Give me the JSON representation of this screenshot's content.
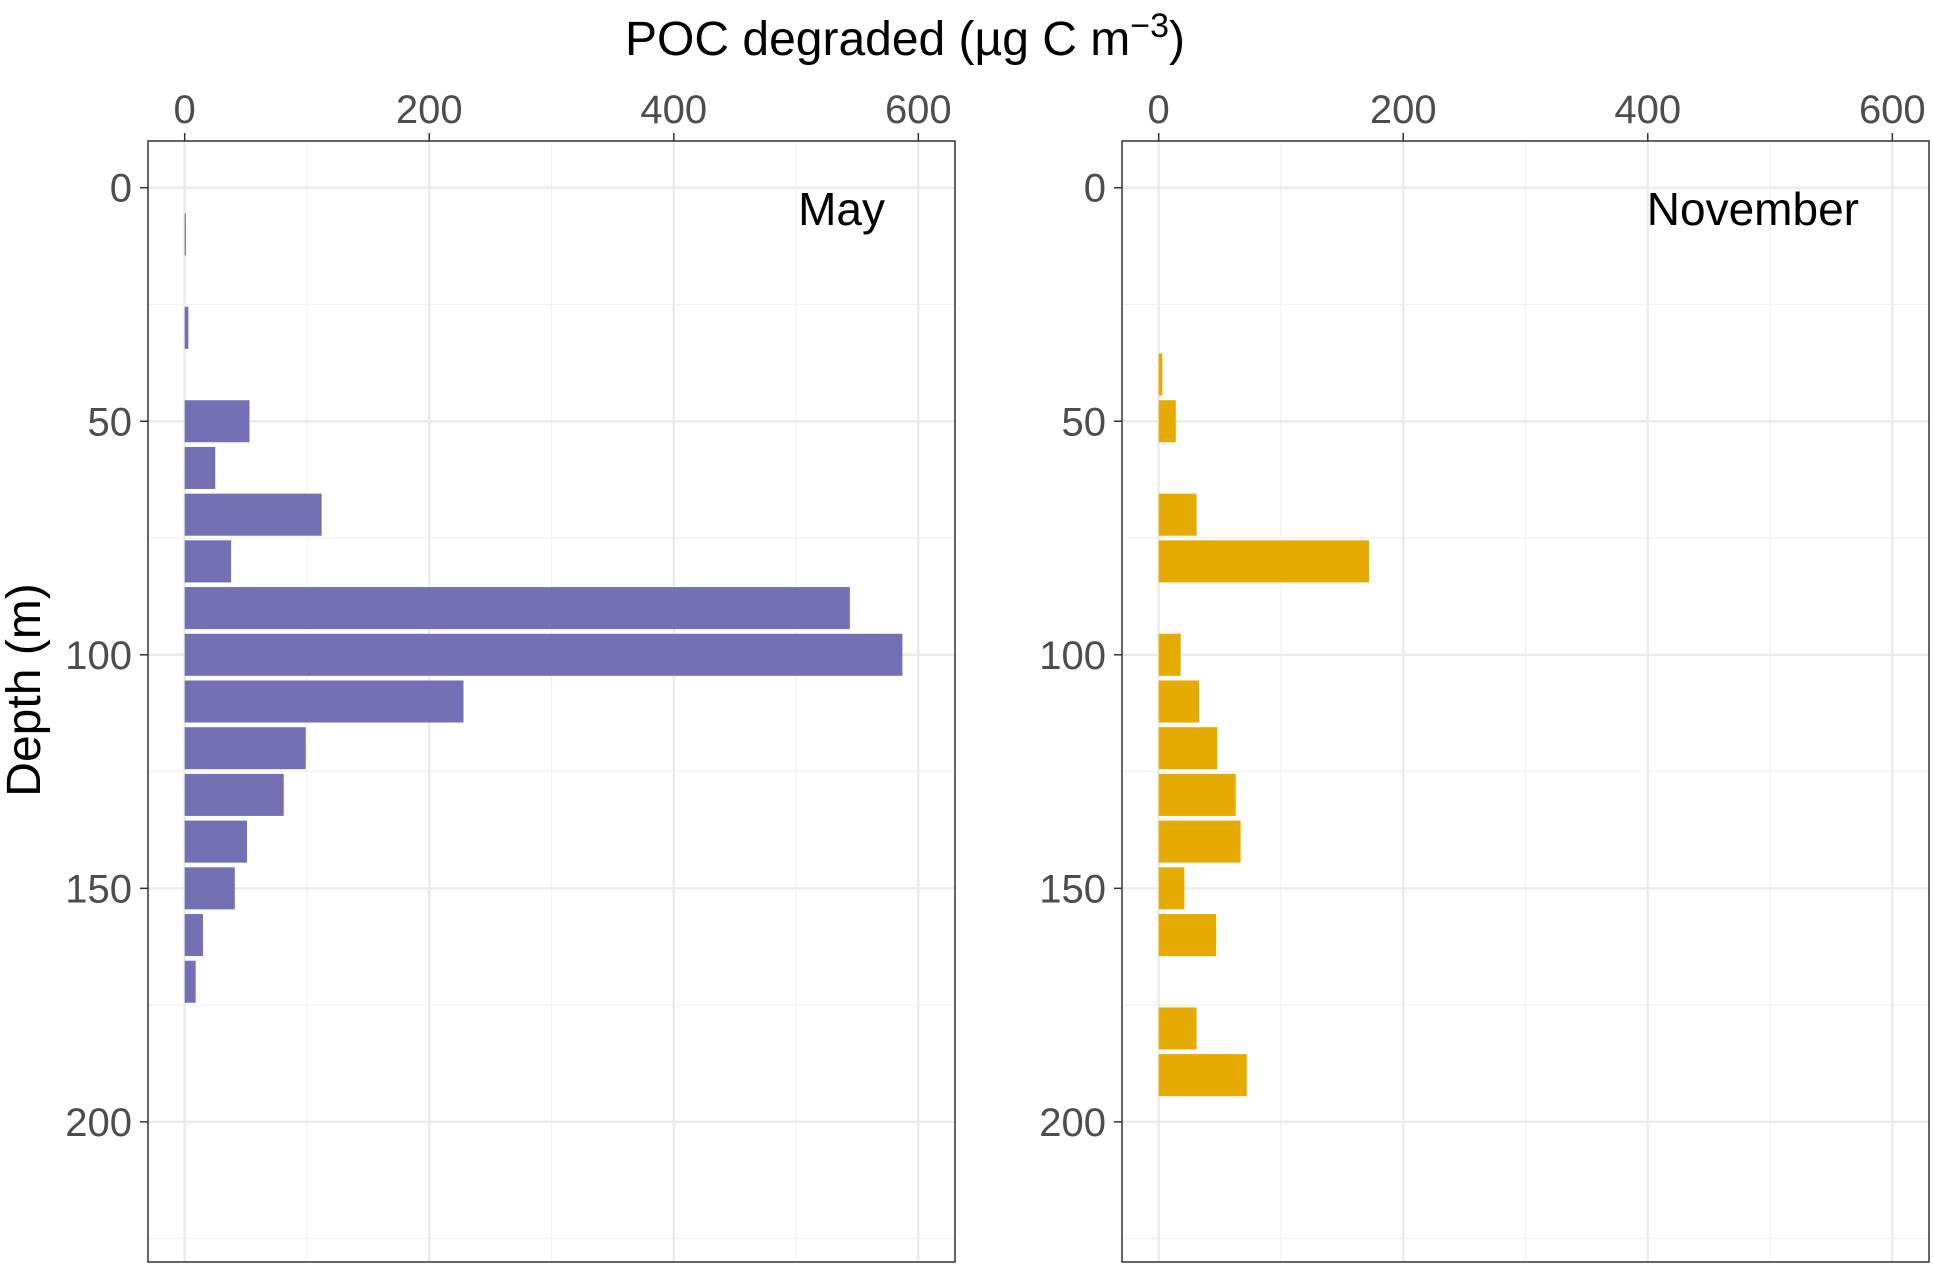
{
  "chart_data": {
    "type": "bar",
    "orientation": "horizontal",
    "title": "POC degraded (µg C m⁻³)",
    "title_main": "POC degraded (µg C m",
    "title_superscript": "−3",
    "title_close": ")",
    "xlabel": "POC degraded (µg C m⁻³)",
    "ylabel": "Depth (m)",
    "xlim": [
      -30,
      630
    ],
    "ylim": [
      230,
      -10
    ],
    "x_ticks": [
      0,
      200,
      400,
      600
    ],
    "y_ticks": [
      0,
      50,
      100,
      150,
      200
    ],
    "x_tick_labels": [
      "0",
      "200",
      "400",
      "600"
    ],
    "y_tick_labels": [
      "0",
      "50",
      "100",
      "150",
      "200"
    ],
    "bar_height": 9,
    "panels": [
      {
        "name": "May",
        "color": "#7570b3",
        "series": [
          {
            "depth": 10,
            "value": 1
          },
          {
            "depth": 30,
            "value": 3
          },
          {
            "depth": 50,
            "value": 53
          },
          {
            "depth": 60,
            "value": 25
          },
          {
            "depth": 70,
            "value": 112
          },
          {
            "depth": 80,
            "value": 38
          },
          {
            "depth": 90,
            "value": 544
          },
          {
            "depth": 100,
            "value": 587
          },
          {
            "depth": 110,
            "value": 228
          },
          {
            "depth": 120,
            "value": 99
          },
          {
            "depth": 130,
            "value": 81
          },
          {
            "depth": 140,
            "value": 51
          },
          {
            "depth": 150,
            "value": 41
          },
          {
            "depth": 160,
            "value": 15
          },
          {
            "depth": 170,
            "value": 9
          }
        ]
      },
      {
        "name": "November",
        "color": "#e6ab02",
        "series": [
          {
            "depth": 40,
            "value": 3
          },
          {
            "depth": 50,
            "value": 14
          },
          {
            "depth": 70,
            "value": 31
          },
          {
            "depth": 80,
            "value": 172
          },
          {
            "depth": 100,
            "value": 18
          },
          {
            "depth": 110,
            "value": 33
          },
          {
            "depth": 120,
            "value": 48
          },
          {
            "depth": 130,
            "value": 63
          },
          {
            "depth": 140,
            "value": 67
          },
          {
            "depth": 150,
            "value": 21
          },
          {
            "depth": 160,
            "value": 47
          },
          {
            "depth": 180,
            "value": 31
          },
          {
            "depth": 190,
            "value": 72
          }
        ]
      }
    ]
  }
}
